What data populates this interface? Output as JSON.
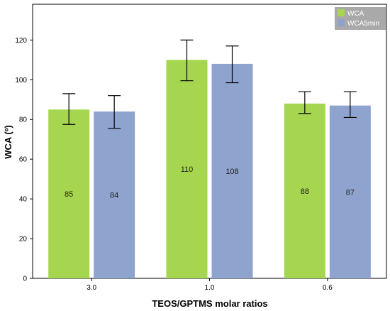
{
  "chart_data": {
    "type": "bar",
    "title": "",
    "xlabel": "TEOS/GPTMS molar ratios",
    "ylabel": "WCA (º)",
    "categories": [
      "3.0",
      "1.0",
      "0.6"
    ],
    "series": [
      {
        "name": "WCA",
        "color": "#a6d64f",
        "values": [
          85,
          110,
          88
        ],
        "err_low": [
          77.5,
          99.5,
          83
        ],
        "err_high": [
          93,
          120,
          94
        ]
      },
      {
        "name": "WCA5min",
        "color": "#8fa3cf",
        "values": [
          84,
          108,
          87
        ],
        "err_low": [
          75.5,
          98.5,
          81
        ],
        "err_high": [
          92,
          117,
          94
        ]
      }
    ],
    "data_labels": [
      [
        "85",
        "110",
        "88"
      ],
      [
        "84",
        "108",
        "87"
      ]
    ],
    "ylim": [
      0,
      138
    ],
    "yticks": [
      0,
      20,
      40,
      60,
      80,
      100,
      120
    ],
    "grid": false,
    "legend_position": "top-right",
    "legend_background": "#a9a9a9"
  }
}
